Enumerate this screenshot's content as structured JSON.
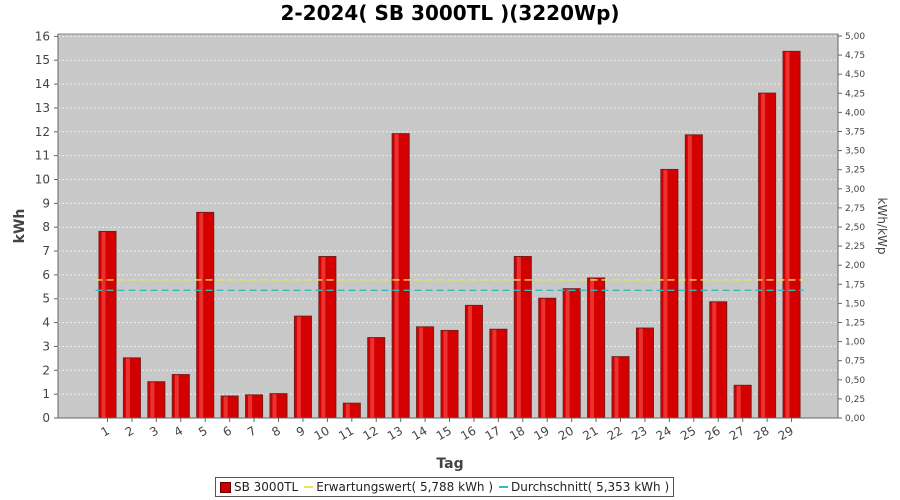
{
  "chart_data": {
    "type": "bar",
    "title": "2-2024( SB 3000TL )(3220Wp)",
    "xlabel": "Tag",
    "ylabel": "kWh",
    "ylabel_right": "kWh/kWp",
    "ylim": [
      0,
      16.1
    ],
    "yticks": [
      "0",
      "1",
      "2",
      "3",
      "4",
      "5",
      "6",
      "7",
      "8",
      "9",
      "10",
      "11",
      "12",
      "13",
      "14",
      "15",
      "16"
    ],
    "ylim_right": [
      0,
      5.0
    ],
    "yticks_right": [
      "0,00",
      "0,25",
      "0,50",
      "0,75",
      "1,00",
      "1,25",
      "1,50",
      "1,75",
      "2,00",
      "2,25",
      "2,50",
      "2,75",
      "3,00",
      "3,25",
      "3,50",
      "3,75",
      "4,00",
      "4,25",
      "4,50",
      "4,75",
      "5,00"
    ],
    "grid": true,
    "legend_position": "bottom",
    "categories": [
      "1",
      "2",
      "3",
      "4",
      "5",
      "6",
      "7",
      "8",
      "9",
      "10",
      "11",
      "12",
      "13",
      "14",
      "15",
      "16",
      "17",
      "18",
      "19",
      "20",
      "21",
      "22",
      "23",
      "24",
      "25",
      "26",
      "27",
      "28",
      "29"
    ],
    "series": [
      {
        "name": "SB 3000TL",
        "color": "#cc0000",
        "values": [
          7.8,
          2.5,
          1.5,
          1.8,
          8.6,
          0.9,
          0.95,
          1.0,
          4.25,
          6.75,
          0.6,
          3.35,
          11.9,
          3.8,
          3.65,
          4.7,
          3.7,
          6.75,
          5.0,
          5.4,
          5.85,
          2.55,
          3.75,
          10.4,
          11.85,
          4.85,
          1.35,
          13.6,
          15.35
        ]
      }
    ],
    "reference_lines": [
      {
        "name": "Erwartungswert( 5,788 kWh )",
        "value": 5.788,
        "color": "#e6e650"
      },
      {
        "name": "Durchschnitt( 5,353 kWh )",
        "value": 5.353,
        "color": "#33bbbb"
      }
    ]
  }
}
